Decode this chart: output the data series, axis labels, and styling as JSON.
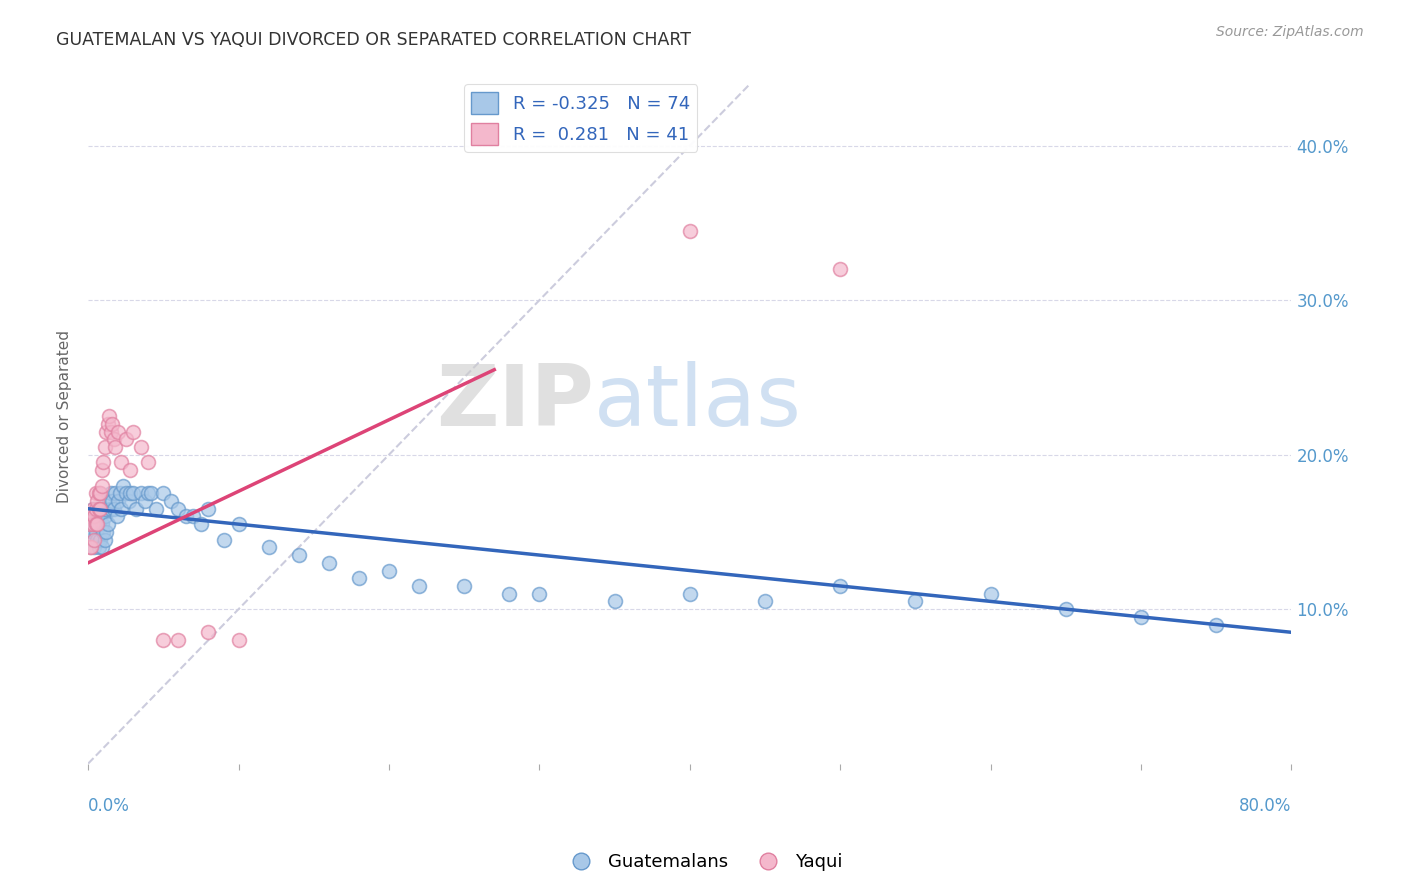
{
  "title": "GUATEMALAN VS YAQUI DIVORCED OR SEPARATED CORRELATION CHART",
  "source": "Source: ZipAtlas.com",
  "ylabel": "Divorced or Separated",
  "legend_labels": [
    "Guatemalans",
    "Yaqui"
  ],
  "legend_r": [
    -0.325,
    0.281
  ],
  "legend_n": [
    74,
    41
  ],
  "blue_color": "#a8c8e8",
  "pink_color": "#f4b8cc",
  "blue_edge_color": "#6699cc",
  "pink_edge_color": "#e080a0",
  "blue_line_color": "#3366bb",
  "pink_line_color": "#dd4477",
  "diagonal_color": "#ccccdd",
  "xlim": [
    0.0,
    0.8
  ],
  "ylim": [
    0.0,
    0.45
  ],
  "blue_scatter_x": [
    0.001,
    0.002,
    0.002,
    0.003,
    0.003,
    0.004,
    0.004,
    0.005,
    0.005,
    0.005,
    0.006,
    0.006,
    0.006,
    0.007,
    0.007,
    0.008,
    0.008,
    0.009,
    0.009,
    0.01,
    0.01,
    0.011,
    0.011,
    0.012,
    0.012,
    0.013,
    0.014,
    0.015,
    0.015,
    0.016,
    0.017,
    0.018,
    0.019,
    0.02,
    0.021,
    0.022,
    0.023,
    0.025,
    0.027,
    0.028,
    0.03,
    0.032,
    0.035,
    0.038,
    0.04,
    0.042,
    0.045,
    0.05,
    0.055,
    0.06,
    0.065,
    0.07,
    0.075,
    0.08,
    0.09,
    0.1,
    0.12,
    0.14,
    0.16,
    0.18,
    0.2,
    0.22,
    0.25,
    0.28,
    0.3,
    0.35,
    0.4,
    0.45,
    0.5,
    0.55,
    0.6,
    0.65,
    0.7,
    0.75
  ],
  "blue_scatter_y": [
    0.155,
    0.145,
    0.16,
    0.15,
    0.165,
    0.14,
    0.155,
    0.15,
    0.16,
    0.155,
    0.145,
    0.155,
    0.165,
    0.14,
    0.155,
    0.145,
    0.16,
    0.14,
    0.155,
    0.15,
    0.165,
    0.145,
    0.16,
    0.15,
    0.165,
    0.155,
    0.17,
    0.165,
    0.175,
    0.17,
    0.165,
    0.175,
    0.16,
    0.17,
    0.175,
    0.165,
    0.18,
    0.175,
    0.17,
    0.175,
    0.175,
    0.165,
    0.175,
    0.17,
    0.175,
    0.175,
    0.165,
    0.175,
    0.17,
    0.165,
    0.16,
    0.16,
    0.155,
    0.165,
    0.145,
    0.155,
    0.14,
    0.135,
    0.13,
    0.12,
    0.125,
    0.115,
    0.115,
    0.11,
    0.11,
    0.105,
    0.11,
    0.105,
    0.115,
    0.105,
    0.11,
    0.1,
    0.095,
    0.09
  ],
  "pink_scatter_x": [
    0.001,
    0.001,
    0.002,
    0.002,
    0.003,
    0.003,
    0.004,
    0.004,
    0.005,
    0.005,
    0.005,
    0.006,
    0.006,
    0.007,
    0.007,
    0.008,
    0.008,
    0.009,
    0.009,
    0.01,
    0.011,
    0.012,
    0.013,
    0.014,
    0.015,
    0.016,
    0.017,
    0.018,
    0.02,
    0.022,
    0.025,
    0.028,
    0.03,
    0.035,
    0.04,
    0.05,
    0.06,
    0.08,
    0.1,
    0.4,
    0.5
  ],
  "pink_scatter_y": [
    0.14,
    0.155,
    0.16,
    0.14,
    0.155,
    0.165,
    0.16,
    0.145,
    0.155,
    0.165,
    0.175,
    0.17,
    0.155,
    0.165,
    0.175,
    0.165,
    0.175,
    0.18,
    0.19,
    0.195,
    0.205,
    0.215,
    0.22,
    0.225,
    0.215,
    0.22,
    0.21,
    0.205,
    0.215,
    0.195,
    0.21,
    0.19,
    0.215,
    0.205,
    0.195,
    0.08,
    0.08,
    0.085,
    0.08,
    0.345,
    0.32
  ],
  "blue_line_x": [
    0.0,
    0.8
  ],
  "blue_line_y": [
    0.165,
    0.085
  ],
  "pink_line_x": [
    0.0,
    0.27
  ],
  "pink_line_y": [
    0.13,
    0.255
  ],
  "diag_line_x": [
    0.0,
    0.44
  ],
  "diag_line_y": [
    0.0,
    0.44
  ],
  "xtick_labels": [
    "0.0%",
    "80.0%"
  ],
  "ytick_labels": [
    "10.0%",
    "20.0%",
    "30.0%",
    "40.0%"
  ],
  "ytick_values": [
    0.1,
    0.2,
    0.3,
    0.4
  ]
}
